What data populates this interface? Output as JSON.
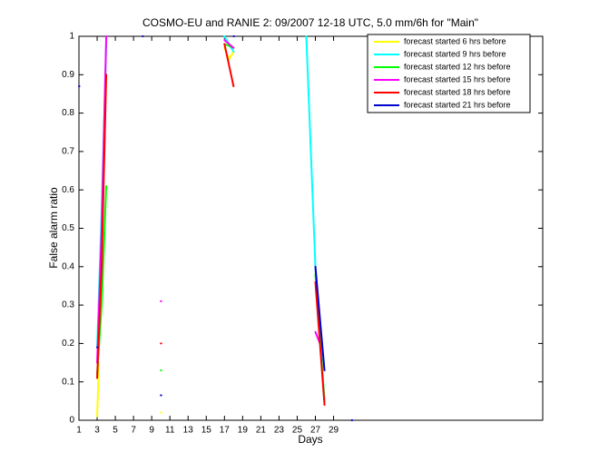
{
  "chart_data": {
    "type": "line",
    "title": "COSMO-EU and RANIE 2: 09/2007 12-18 UTC, 5.0 mm/6h for \"Main\"",
    "xlabel": "Days",
    "ylabel": "False alarm ratio",
    "xlim": [
      1,
      52
    ],
    "ylim": [
      0,
      1
    ],
    "xticks": [
      1,
      3,
      5,
      7,
      9,
      11,
      13,
      15,
      17,
      19,
      21,
      23,
      25,
      27,
      29
    ],
    "yticks": [
      0,
      0.1,
      0.2,
      0.3,
      0.4,
      0.5,
      0.6,
      0.7,
      0.8,
      0.9,
      1
    ],
    "legend": "top-right",
    "series": [
      {
        "name": "forecast started 6 hrs before",
        "color": "#ffff00",
        "x": [
          3,
          3.2,
          null,
          10,
          null,
          17,
          17.5,
          18
        ],
        "values": [
          0.01,
          0.15,
          null,
          0.02,
          null,
          0.97,
          0.94,
          0.96
        ]
      },
      {
        "name": "forecast started 9 hrs before",
        "color": "#00ffff",
        "x": [
          3,
          3.5,
          4,
          null,
          17,
          18,
          null,
          26,
          27,
          28
        ],
        "values": [
          0.19,
          0.55,
          0.98,
          null,
          1,
          0.96,
          null,
          1,
          0.4,
          0.05
        ]
      },
      {
        "name": "forecast started 12 hrs before",
        "color": "#00ff00",
        "x": [
          3,
          3.5,
          4,
          null,
          10,
          null,
          17,
          18,
          null,
          27,
          28
        ],
        "values": [
          0.12,
          0.3,
          0.61,
          null,
          0.13,
          null,
          0.98,
          0.97,
          null,
          0.38,
          0.05
        ]
      },
      {
        "name": "forecast started 15 hrs before",
        "color": "#ff00ff",
        "x": [
          3,
          3.5,
          4,
          null,
          10,
          null,
          17,
          18,
          null,
          27,
          27.5
        ],
        "values": [
          0.15,
          0.5,
          1,
          null,
          0.31,
          null,
          0.99,
          0.97,
          null,
          0.23,
          0.2
        ]
      },
      {
        "name": "forecast started 18 hrs before",
        "color": "#ff0000",
        "x": [
          3,
          3.5,
          4,
          null,
          10,
          null,
          17,
          18,
          null,
          27,
          28
        ],
        "values": [
          0.11,
          0.4,
          0.9,
          null,
          0.2,
          null,
          0.98,
          0.87,
          null,
          0.36,
          0.04
        ]
      },
      {
        "name": "forecast started 21 hrs before",
        "color": "#0000cc",
        "x": [
          1,
          null,
          3,
          null,
          8,
          null,
          10,
          null,
          18,
          null,
          27,
          28,
          null,
          31
        ],
        "values": [
          0.87,
          null,
          0.19,
          null,
          1,
          null,
          0.065,
          null,
          1,
          null,
          0.4,
          0.13,
          null,
          0
        ]
      }
    ]
  }
}
